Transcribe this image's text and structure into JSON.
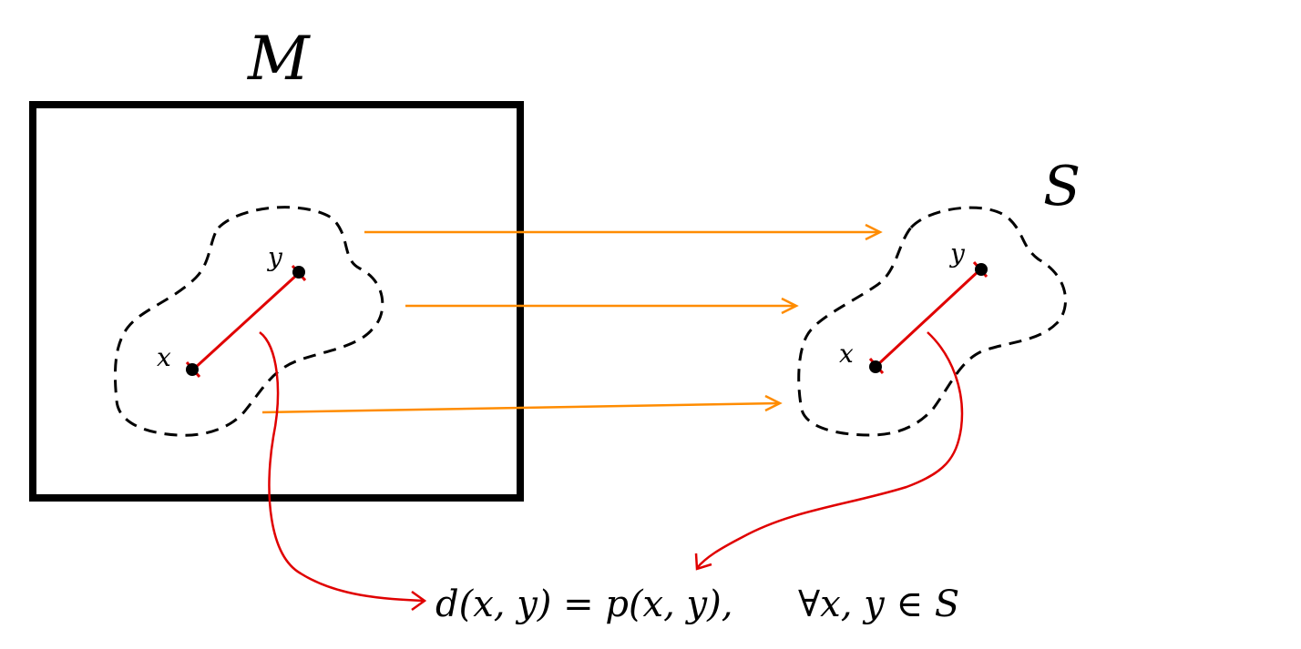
{
  "labels": {
    "space_M": "M",
    "subset_S": "S",
    "point_x_left": "x",
    "point_y_left": "y",
    "point_x_right": "x",
    "point_y_right": "y"
  },
  "formula": {
    "lhs": "d(x, y) = p(x, y),",
    "rhs": "∀x, y ∈ S"
  },
  "colors": {
    "frame": "#000000",
    "boundary": "#000000",
    "distance_segment": "#e00000",
    "map_arrows": "#ff8c00",
    "annotation_arrows": "#e00000"
  },
  "icons": {
    "dashed_region": "dashed-blob",
    "map_arrow": "right-arrow",
    "point": "filled-dot"
  }
}
